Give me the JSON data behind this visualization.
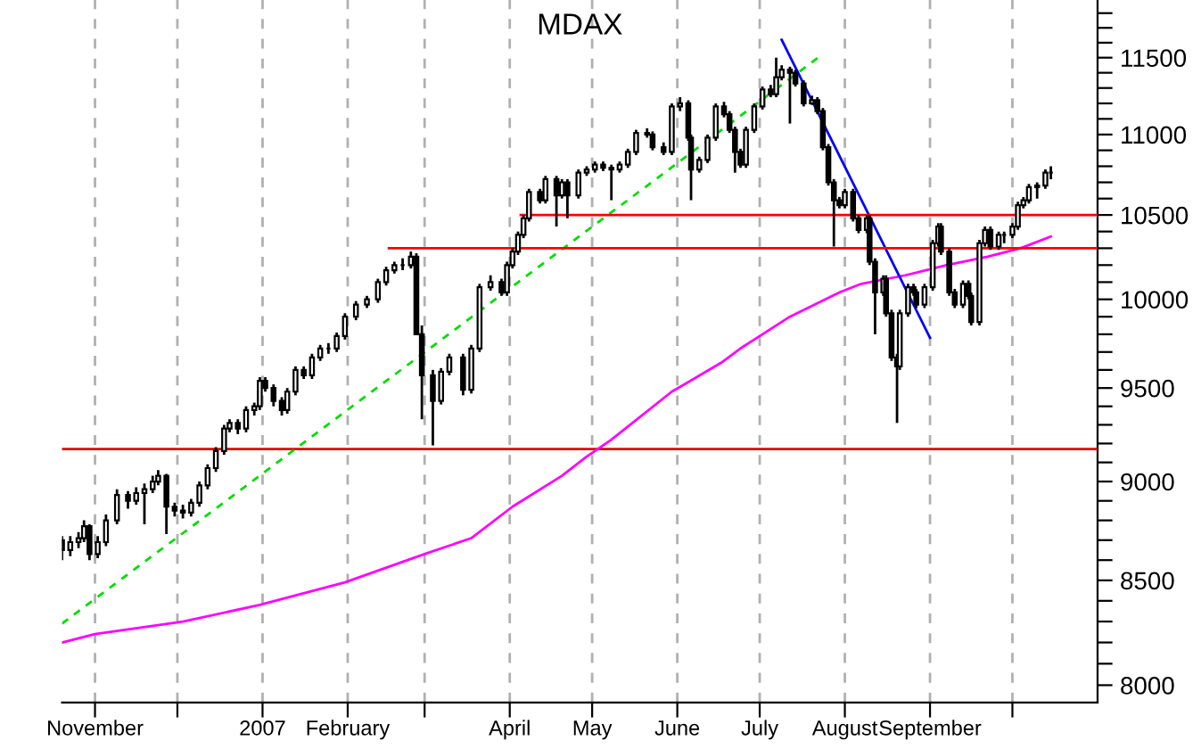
{
  "chart_data": {
    "type": "candlestick",
    "title": "MDAX",
    "log": "y",
    "grid": "x",
    "xlim": [
      "2006-10-20",
      "2007-11-01"
    ],
    "ylim": [
      7920,
      11890
    ],
    "xticks": [
      {
        "value": "2006-11-01",
        "label": "November"
      },
      {
        "value": "2006-12-01",
        "label": null
      },
      {
        "value": "2007-01-01",
        "label": "2007"
      },
      {
        "value": "2007-02-01",
        "label": "February"
      },
      {
        "value": "2007-03-01",
        "label": null
      },
      {
        "value": "2007-04-01",
        "label": "April"
      },
      {
        "value": "2007-05-01",
        "label": "May"
      },
      {
        "value": "2007-06-01",
        "label": "June"
      },
      {
        "value": "2007-07-01",
        "label": "July"
      },
      {
        "value": "2007-08-01",
        "label": "August"
      },
      {
        "value": "2007-09-01",
        "label": "September"
      },
      {
        "value": "2007-10-01",
        "label": null
      }
    ],
    "yticks": [
      8000,
      {
        "value": 8100,
        "label": null
      },
      {
        "value": 8200,
        "label": null
      },
      {
        "value": 8300,
        "label": null
      },
      {
        "value": 8400,
        "label": null
      },
      8500,
      {
        "value": 8600,
        "label": null
      },
      {
        "value": 8700,
        "label": null
      },
      {
        "value": 8800,
        "label": null
      },
      {
        "value": 8900,
        "label": null
      },
      9000,
      {
        "value": 9100,
        "label": null
      },
      {
        "value": 9200,
        "label": null
      },
      {
        "value": 9300,
        "label": null
      },
      {
        "value": 9400,
        "label": null
      },
      9500,
      {
        "value": 9600,
        "label": null
      },
      {
        "value": 9700,
        "label": null
      },
      {
        "value": 9800,
        "label": null
      },
      {
        "value": 9900,
        "label": null
      },
      10000,
      {
        "value": 10100,
        "label": null
      },
      {
        "value": 10200,
        "label": null
      },
      {
        "value": 10300,
        "label": null
      },
      {
        "value": 10400,
        "label": null
      },
      10500,
      {
        "value": 10600,
        "label": null
      },
      {
        "value": 10700,
        "label": null
      },
      {
        "value": 10800,
        "label": null
      },
      {
        "value": 10900,
        "label": null
      },
      11000,
      {
        "value": 11100,
        "label": null
      },
      {
        "value": 11200,
        "label": null
      },
      {
        "value": 11300,
        "label": null
      },
      {
        "value": 11400,
        "label": null
      },
      11500,
      {
        "value": 11600,
        "label": null
      },
      {
        "value": 11700,
        "label": null
      },
      {
        "value": 11800,
        "label": null
      }
    ],
    "ref_lines": [
      {
        "axis": "y",
        "value": 9170,
        "color": "#e00000"
      }
    ],
    "series": [
      {
        "type": "candlestick",
        "color": "#000000",
        "x": [
          "2006-10-20",
          "2006-10-23",
          "2006-10-26",
          "2006-10-28",
          "2006-10-30",
          "2006-11-02",
          "2006-11-05",
          "2006-11-09",
          "2006-11-13",
          "2006-11-16",
          "2006-11-19",
          "2006-11-22",
          "2006-11-24",
          "2006-11-27",
          "2006-11-30",
          "2006-12-03",
          "2006-12-06",
          "2006-12-09",
          "2006-12-12",
          "2006-12-15",
          "2006-12-18",
          "2006-12-20",
          "2006-12-23",
          "2006-12-26",
          "2006-12-29",
          "2006-12-31",
          "2007-01-02",
          "2007-01-05",
          "2007-01-08",
          "2007-01-10",
          "2007-01-13",
          "2007-01-16",
          "2007-01-19",
          "2007-01-22",
          "2007-01-25",
          "2007-01-28",
          "2007-01-31",
          "2007-02-04",
          "2007-02-08",
          "2007-02-12",
          "2007-02-15",
          "2007-02-18",
          "2007-02-21",
          "2007-02-24",
          "2007-02-26",
          "2007-02-28",
          "2007-03-04",
          "2007-03-07",
          "2007-03-10",
          "2007-03-15",
          "2007-03-18",
          "2007-03-21",
          "2007-03-25",
          "2007-03-29",
          "2007-03-31",
          "2007-04-02",
          "2007-04-04",
          "2007-04-06",
          "2007-04-08",
          "2007-04-12",
          "2007-04-14",
          "2007-04-18",
          "2007-04-20",
          "2007-04-22",
          "2007-04-26",
          "2007-04-29",
          "2007-05-02",
          "2007-05-05",
          "2007-05-08",
          "2007-05-11",
          "2007-05-14",
          "2007-05-17",
          "2007-05-21",
          "2007-05-23",
          "2007-05-27",
          "2007-05-30",
          "2007-06-02",
          "2007-06-05",
          "2007-06-06",
          "2007-06-09",
          "2007-06-12",
          "2007-06-15",
          "2007-06-18",
          "2007-06-20",
          "2007-06-22",
          "2007-06-24",
          "2007-06-26",
          "2007-06-29",
          "2007-07-02",
          "2007-07-05",
          "2007-07-07",
          "2007-07-09",
          "2007-07-12",
          "2007-07-14",
          "2007-07-17",
          "2007-07-20",
          "2007-07-22",
          "2007-07-24",
          "2007-07-26",
          "2007-07-28",
          "2007-07-30",
          "2007-08-01",
          "2007-08-04",
          "2007-08-06",
          "2007-08-09",
          "2007-08-10",
          "2007-08-12",
          "2007-08-15",
          "2007-08-16",
          "2007-08-18",
          "2007-08-20",
          "2007-08-21",
          "2007-08-24",
          "2007-08-26",
          "2007-08-27",
          "2007-08-30",
          "2007-09-02",
          "2007-09-04",
          "2007-09-05",
          "2007-09-08",
          "2007-09-10",
          "2007-09-13",
          "2007-09-15",
          "2007-09-16",
          "2007-09-19",
          "2007-09-21",
          "2007-09-23",
          "2007-09-26",
          "2007-09-28",
          "2007-10-01",
          "2007-10-03",
          "2007-10-05",
          "2007-10-07",
          "2007-10-10",
          "2007-10-13",
          "2007-10-15"
        ],
        "ohlc": [
          [
            8700,
            8720,
            8600,
            8650
          ],
          [
            8650,
            8720,
            8620,
            8690
          ],
          [
            8690,
            8740,
            8660,
            8710
          ],
          [
            8710,
            8800,
            8690,
            8770
          ],
          [
            8770,
            8780,
            8600,
            8630
          ],
          [
            8630,
            8720,
            8610,
            8690
          ],
          [
            8690,
            8830,
            8670,
            8800
          ],
          [
            8800,
            8960,
            8780,
            8930
          ],
          [
            8930,
            8950,
            8860,
            8900
          ],
          [
            8900,
            8970,
            8880,
            8940
          ],
          [
            8940,
            8990,
            8780,
            8960
          ],
          [
            8960,
            9030,
            8940,
            9000
          ],
          [
            9000,
            9060,
            8980,
            9030
          ],
          [
            9030,
            9040,
            8730,
            8870
          ],
          [
            8870,
            8890,
            8820,
            8850
          ],
          [
            8850,
            8880,
            8810,
            8840
          ],
          [
            8840,
            8910,
            8820,
            8890
          ],
          [
            8890,
            9000,
            8870,
            8980
          ],
          [
            8980,
            9090,
            8960,
            9070
          ],
          [
            9070,
            9180,
            9050,
            9160
          ],
          [
            9160,
            9300,
            9140,
            9280
          ],
          [
            9280,
            9330,
            9260,
            9310
          ],
          [
            9310,
            9330,
            9250,
            9280
          ],
          [
            9280,
            9400,
            9260,
            9380
          ],
          [
            9380,
            9420,
            9350,
            9400
          ],
          [
            9400,
            9560,
            9380,
            9540
          ],
          [
            9540,
            9560,
            9480,
            9500
          ],
          [
            9500,
            9520,
            9400,
            9430
          ],
          [
            9430,
            9450,
            9350,
            9380
          ],
          [
            9380,
            9500,
            9360,
            9480
          ],
          [
            9480,
            9620,
            9460,
            9600
          ],
          [
            9600,
            9620,
            9550,
            9570
          ],
          [
            9570,
            9690,
            9550,
            9670
          ],
          [
            9670,
            9740,
            9650,
            9720
          ],
          [
            9720,
            9750,
            9690,
            9720
          ],
          [
            9720,
            9810,
            9700,
            9790
          ],
          [
            9790,
            9920,
            9770,
            9900
          ],
          [
            9900,
            9990,
            9880,
            9970
          ],
          [
            9970,
            10020,
            9950,
            10000
          ],
          [
            10000,
            10120,
            9980,
            10100
          ],
          [
            10100,
            10190,
            10080,
            10170
          ],
          [
            10170,
            10220,
            10150,
            10200
          ],
          [
            10200,
            10240,
            10170,
            10200
          ],
          [
            10200,
            10280,
            10180,
            10250
          ],
          [
            10250,
            10270,
            9800,
            9800
          ],
          [
            9800,
            9850,
            9330,
            9570
          ],
          [
            9570,
            9600,
            9190,
            9430
          ],
          [
            9430,
            9610,
            9410,
            9590
          ],
          [
            9590,
            9690,
            9570,
            9670
          ],
          [
            9670,
            9690,
            9460,
            9490
          ],
          [
            9490,
            9740,
            9470,
            9720
          ],
          [
            9720,
            10090,
            9700,
            10070
          ],
          [
            10070,
            10140,
            10050,
            10100
          ],
          [
            10100,
            10120,
            10020,
            10040
          ],
          [
            10040,
            10220,
            10020,
            10200
          ],
          [
            10200,
            10300,
            10180,
            10280
          ],
          [
            10280,
            10400,
            10260,
            10380
          ],
          [
            10380,
            10500,
            10360,
            10480
          ],
          [
            10480,
            10660,
            10460,
            10640
          ],
          [
            10640,
            10660,
            10570,
            10590
          ],
          [
            10590,
            10740,
            10570,
            10720
          ],
          [
            10720,
            10740,
            10430,
            10620
          ],
          [
            10620,
            10720,
            10600,
            10700
          ],
          [
            10700,
            10720,
            10480,
            10620
          ],
          [
            10620,
            10780,
            10600,
            10760
          ],
          [
            10760,
            10800,
            10740,
            10780
          ],
          [
            10780,
            10830,
            10760,
            10810
          ],
          [
            10810,
            10830,
            10770,
            10790
          ],
          [
            10790,
            10810,
            10590,
            10780
          ],
          [
            10780,
            10830,
            10760,
            10810
          ],
          [
            10810,
            10910,
            10790,
            10890
          ],
          [
            10890,
            11030,
            10870,
            11010
          ],
          [
            11010,
            11040,
            10980,
            11000
          ],
          [
            11000,
            11020,
            10900,
            10920
          ],
          [
            10920,
            10950,
            10870,
            10890
          ],
          [
            10890,
            11200,
            10870,
            11180
          ],
          [
            11180,
            11240,
            11150,
            11200
          ],
          [
            11200,
            11220,
            10960,
            10980
          ],
          [
            10980,
            11000,
            10590,
            10780
          ],
          [
            10780,
            10860,
            10760,
            10840
          ],
          [
            10840,
            11000,
            10820,
            10980
          ],
          [
            10980,
            11200,
            10960,
            11180
          ],
          [
            11180,
            11210,
            11110,
            11130
          ],
          [
            11130,
            11150,
            11010,
            11030
          ],
          [
            11030,
            11050,
            10760,
            10890
          ],
          [
            10890,
            10910,
            10790,
            10810
          ],
          [
            10810,
            11050,
            10790,
            11030
          ],
          [
            11030,
            11200,
            11010,
            11180
          ],
          [
            11180,
            11310,
            11160,
            11290
          ],
          [
            11290,
            11320,
            11240,
            11260
          ],
          [
            11260,
            11500,
            11240,
            11370
          ],
          [
            11370,
            11450,
            11350,
            11420
          ],
          [
            11420,
            11440,
            11070,
            11400
          ],
          [
            11400,
            11420,
            11310,
            11330
          ],
          [
            11330,
            11350,
            11180,
            11200
          ],
          [
            11200,
            11250,
            11190,
            11220
          ],
          [
            11220,
            11240,
            11130,
            11150
          ],
          [
            11150,
            11170,
            10900,
            10920
          ],
          [
            10920,
            10940,
            10680,
            10700
          ],
          [
            10700,
            10720,
            10310,
            10590
          ],
          [
            10590,
            10610,
            10540,
            10560
          ],
          [
            10560,
            10660,
            10540,
            10640
          ],
          [
            10640,
            10660,
            10460,
            10480
          ],
          [
            10480,
            10500,
            10390,
            10410
          ],
          [
            10410,
            10500,
            10390,
            10480
          ],
          [
            10480,
            10500,
            10200,
            10220
          ],
          [
            10220,
            10240,
            9800,
            10040
          ],
          [
            10040,
            10140,
            10020,
            10120
          ],
          [
            10120,
            10140,
            9900,
            9920
          ],
          [
            9920,
            9940,
            9650,
            9670
          ],
          [
            9670,
            9690,
            9310,
            9620
          ],
          [
            9620,
            9940,
            9600,
            9920
          ],
          [
            9920,
            10090,
            9900,
            10070
          ],
          [
            10070,
            10090,
            10020,
            10040
          ],
          [
            10040,
            10060,
            9950,
            9970
          ],
          [
            9970,
            10090,
            9950,
            10070
          ],
          [
            10070,
            10350,
            10050,
            10330
          ],
          [
            10330,
            10450,
            10310,
            10430
          ],
          [
            10430,
            10450,
            10260,
            10280
          ],
          [
            10280,
            10300,
            10020,
            10040
          ],
          [
            10040,
            10060,
            9950,
            9970
          ],
          [
            9970,
            10110,
            9950,
            10090
          ],
          [
            10090,
            10110,
            10000,
            10020
          ],
          [
            10020,
            10040,
            9850,
            9870
          ],
          [
            9870,
            10350,
            9850,
            10330
          ],
          [
            10330,
            10430,
            10310,
            10410
          ],
          [
            10410,
            10430,
            10290,
            10310
          ],
          [
            10310,
            10400,
            10290,
            10380
          ],
          [
            10380,
            10400,
            10330,
            10380
          ],
          [
            10380,
            10450,
            10360,
            10430
          ],
          [
            10430,
            10580,
            10410,
            10560
          ],
          [
            10560,
            10610,
            10540,
            10590
          ],
          [
            10590,
            10690,
            10570,
            10670
          ],
          [
            10670,
            10700,
            10600,
            10680
          ],
          [
            10680,
            10780,
            10660,
            10760
          ],
          [
            10760,
            10800,
            10720,
            10760
          ]
        ]
      },
      {
        "type": "line",
        "color": "#ff00ff",
        "x": [
          "2006-10-20",
          "2006-11-01",
          "2006-12-03",
          "2006-12-31",
          "2007-01-31",
          "2007-03-01",
          "2007-03-18",
          "2007-04-02",
          "2007-04-20",
          "2007-04-29",
          "2007-05-08",
          "2007-05-30",
          "2007-06-17",
          "2007-06-24",
          "2007-06-29",
          "2007-07-12",
          "2007-07-30",
          "2007-08-07",
          "2007-08-23",
          "2007-09-07",
          "2007-09-22",
          "2007-10-04",
          "2007-10-15"
        ],
        "values": [
          8200,
          8240,
          8300,
          8380,
          8490,
          8630,
          8710,
          8870,
          9030,
          9130,
          9220,
          9480,
          9640,
          9720,
          9770,
          9900,
          10040,
          10090,
          10140,
          10200,
          10250,
          10300,
          10370
        ]
      },
      {
        "type": "line",
        "color": "#00dd00",
        "line_style": "dashed",
        "x": [
          "2006-10-20",
          "2007-07-23"
        ],
        "values": [
          8290,
          11510
        ]
      },
      {
        "type": "line",
        "color": "#0000ff",
        "x": [
          "2007-07-09",
          "2007-09-01"
        ],
        "values": [
          11620,
          9780
        ]
      },
      {
        "type": "line",
        "color": "#ff0000",
        "x": [
          "2007-04-05",
          "2007-11-01"
        ],
        "values": [
          10500,
          10500
        ]
      },
      {
        "type": "line",
        "color": "#ff0000",
        "x": [
          "2007-02-16",
          "2007-11-01"
        ],
        "values": [
          10300,
          10300
        ]
      }
    ]
  }
}
